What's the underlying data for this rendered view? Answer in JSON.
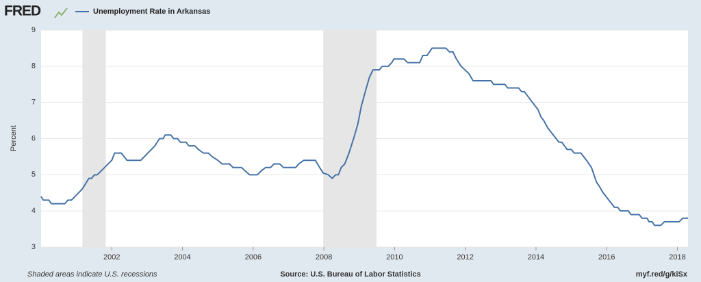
{
  "logo": "FRED",
  "chart_data": {
    "type": "line",
    "title": "Unemployment Rate in Arkansas",
    "ylabel": "Percent",
    "recession_note": "Shaded areas indicate U.S. recessions",
    "source": "Source: U.S. Bureau of Labor Statistics",
    "link": "myf.red/g/kiSx",
    "recessions": [
      [
        2001.17,
        2001.83
      ],
      [
        2007.98,
        2009.49
      ]
    ],
    "recession_color": "#e6e6e6",
    "grid": true,
    "xlim": [
      2000,
      2018.3
    ],
    "xticks": [
      2002,
      2004,
      2006,
      2008,
      2010,
      2012,
      2014,
      2016,
      2018
    ],
    "ylim": [
      3,
      9
    ],
    "yticks": [
      3,
      4,
      5,
      6,
      7,
      8,
      9
    ],
    "x": [
      2000.0,
      2000.06,
      2000.22,
      2000.29,
      2000.67,
      2000.76,
      2000.86,
      2001.16,
      2001.29,
      2001.35,
      2001.43,
      2001.51,
      2001.59,
      2002.0,
      2002.08,
      2002.27,
      2002.43,
      2002.82,
      2003.22,
      2003.35,
      2003.45,
      2003.51,
      2003.67,
      2003.75,
      2003.86,
      2003.94,
      2004.1,
      2004.18,
      2004.35,
      2004.45,
      2004.59,
      2004.73,
      2004.84,
      2005.0,
      2005.12,
      2005.33,
      2005.43,
      2005.67,
      2005.78,
      2005.9,
      2006.12,
      2006.22,
      2006.35,
      2006.49,
      2006.59,
      2006.75,
      2006.86,
      2007.2,
      2007.29,
      2007.43,
      2007.76,
      2007.88,
      2007.98,
      2008.12,
      2008.24,
      2008.33,
      2008.41,
      2008.49,
      2008.59,
      2008.71,
      2008.84,
      2008.96,
      2009.06,
      2009.2,
      2009.29,
      2009.39,
      2009.57,
      2009.65,
      2009.82,
      2009.92,
      2009.98,
      2010.27,
      2010.37,
      2010.71,
      2010.8,
      2010.92,
      2011.06,
      2011.45,
      2011.55,
      2011.65,
      2011.75,
      2011.88,
      2012.1,
      2012.22,
      2012.73,
      2012.8,
      2013.12,
      2013.2,
      2013.51,
      2013.59,
      2013.67,
      2013.9,
      2014.06,
      2014.14,
      2014.22,
      2014.33,
      2014.49,
      2014.65,
      2014.73,
      2014.88,
      2015.0,
      2015.08,
      2015.27,
      2015.43,
      2015.57,
      2015.71,
      2015.78,
      2015.9,
      2016.06,
      2016.22,
      2016.31,
      2016.39,
      2016.61,
      2016.69,
      2016.92,
      2017.0,
      2017.14,
      2017.2,
      2017.29,
      2017.35,
      2017.53,
      2017.63,
      2018.05,
      2018.15,
      2018.3
    ],
    "series": [
      {
        "name": "Unemployment Rate in Arkansas",
        "color": "#4572a7",
        "values": [
          4.4,
          4.3,
          4.3,
          4.2,
          4.2,
          4.3,
          4.3,
          4.6,
          4.8,
          4.9,
          4.9,
          5.0,
          5.0,
          5.4,
          5.6,
          5.6,
          5.4,
          5.4,
          5.8,
          6.0,
          6.0,
          6.1,
          6.1,
          6.0,
          6.0,
          5.9,
          5.9,
          5.8,
          5.8,
          5.7,
          5.6,
          5.6,
          5.5,
          5.4,
          5.3,
          5.3,
          5.2,
          5.2,
          5.1,
          5.0,
          5.0,
          5.1,
          5.2,
          5.2,
          5.3,
          5.3,
          5.2,
          5.2,
          5.3,
          5.4,
          5.4,
          5.2,
          5.05,
          5.0,
          4.9,
          5.0,
          5.0,
          5.2,
          5.3,
          5.6,
          6.0,
          6.4,
          6.9,
          7.4,
          7.7,
          7.9,
          7.9,
          8.0,
          8.0,
          8.1,
          8.2,
          8.2,
          8.1,
          8.1,
          8.3,
          8.3,
          8.5,
          8.5,
          8.4,
          8.4,
          8.2,
          8.0,
          7.8,
          7.6,
          7.6,
          7.5,
          7.5,
          7.4,
          7.4,
          7.3,
          7.3,
          7.0,
          6.8,
          6.6,
          6.5,
          6.3,
          6.1,
          5.9,
          5.9,
          5.7,
          5.7,
          5.6,
          5.6,
          5.4,
          5.2,
          4.8,
          4.7,
          4.5,
          4.3,
          4.1,
          4.1,
          4.0,
          4.0,
          3.9,
          3.9,
          3.8,
          3.8,
          3.7,
          3.7,
          3.6,
          3.6,
          3.7,
          3.7,
          3.8,
          3.8
        ]
      }
    ]
  }
}
